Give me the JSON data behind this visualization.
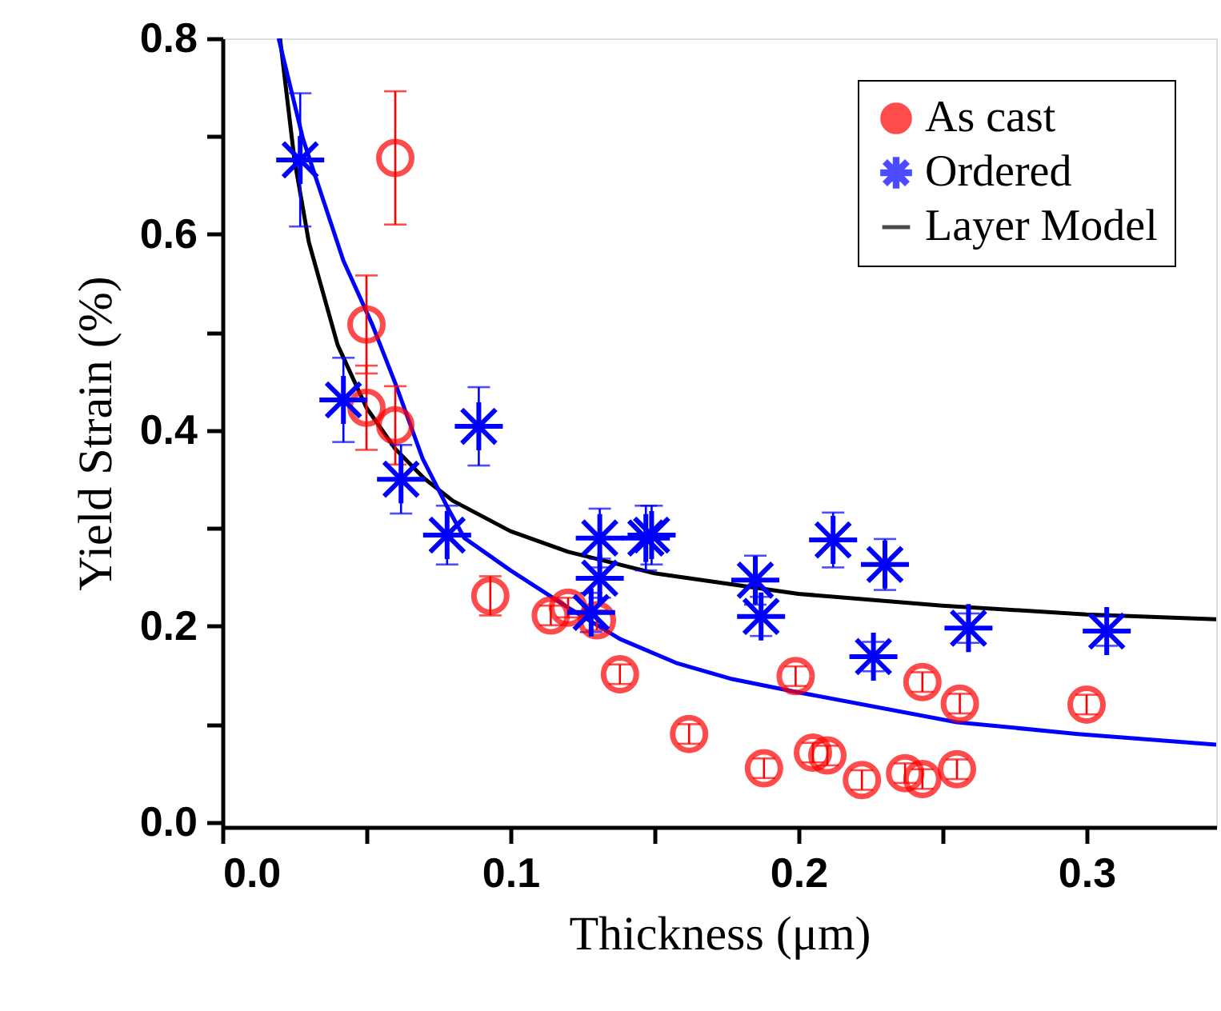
{
  "chart_data": {
    "type": "scatter",
    "xlabel": "Thickness (μm)",
    "ylabel": "Yield Strain (%)",
    "xlim": [
      0,
      0.345
    ],
    "ylim": [
      -0.005,
      0.8
    ],
    "xticks": [
      {
        "value": 0,
        "label": "0.0"
      },
      {
        "value": 0.05,
        "label": null
      },
      {
        "value": 0.1,
        "label": "0.1"
      },
      {
        "value": 0.15,
        "label": null
      },
      {
        "value": 0.2,
        "label": "0.2"
      },
      {
        "value": 0.25,
        "label": null
      },
      {
        "value": 0.3,
        "label": "0.3"
      }
    ],
    "yticks": [
      {
        "value": 0,
        "label": "0.0"
      },
      {
        "value": 0.1,
        "label": null
      },
      {
        "value": 0.2,
        "label": "0.2"
      },
      {
        "value": 0.3,
        "label": null
      },
      {
        "value": 0.4,
        "label": "0.4"
      },
      {
        "value": 0.5,
        "label": null
      },
      {
        "value": 0.6,
        "label": "0.6"
      },
      {
        "value": 0.7,
        "label": null
      },
      {
        "value": 0.8,
        "label": "0.8"
      }
    ],
    "legend": "top right",
    "grid": false,
    "series": [
      {
        "name": "As cast",
        "color": "#ff0000",
        "marker": "circle",
        "x": [
          0.06,
          0.05,
          0.05,
          0.06,
          0.093,
          0.114,
          0.12,
          0.13,
          0.138,
          0.162,
          0.188,
          0.199,
          0.205,
          0.21,
          0.222,
          0.237,
          0.243,
          0.243,
          0.255,
          0.256,
          0.3
        ],
        "values": [
          0.678,
          0.508,
          0.423,
          0.405,
          0.231,
          0.211,
          0.219,
          0.206,
          0.151,
          0.09,
          0.055,
          0.149,
          0.071,
          0.068,
          0.043,
          0.05,
          0.044,
          0.143,
          0.054,
          0.121,
          0.12
        ],
        "errors": [
          0.068,
          0.05,
          0.043,
          0.04,
          0.02,
          0.01,
          0.01,
          0.01,
          0.01,
          0.01,
          0.01,
          0.01,
          0.01,
          0.01,
          0.01,
          0.01,
          0.01,
          0.01,
          0.01,
          0.01,
          0.01
        ]
      },
      {
        "name": "Ordered",
        "color": "#0000ff",
        "marker": "cross",
        "x": [
          0.027,
          0.042,
          0.062,
          0.089,
          0.078,
          0.131,
          0.131,
          0.128,
          0.147,
          0.149,
          0.185,
          0.187,
          0.212,
          0.23,
          0.226,
          0.259,
          0.307
        ],
        "values": [
          0.676,
          0.431,
          0.35,
          0.404,
          0.293,
          0.29,
          0.249,
          0.214,
          0.29,
          0.293,
          0.247,
          0.21,
          0.288,
          0.263,
          0.169,
          0.198,
          0.195
        ],
        "errors": [
          0.068,
          0.043,
          0.035,
          0.04,
          0.03,
          0.03,
          0.02,
          0.02,
          0.033,
          0.03,
          0.025,
          0.02,
          0.028,
          0.026,
          0.015,
          0.015,
          0.015
        ]
      },
      {
        "name": "Layer Model",
        "color": "#000000",
        "type": "line",
        "marker": "none",
        "line_style": "solid",
        "x": [
          0.02,
          0.025,
          0.03,
          0.04,
          0.05,
          0.06,
          0.07,
          0.08,
          0.1,
          0.12,
          0.15,
          0.2,
          0.25,
          0.3,
          0.345
        ],
        "values": [
          0.8,
          0.676,
          0.592,
          0.487,
          0.423,
          0.381,
          0.351,
          0.328,
          0.297,
          0.276,
          0.254,
          0.233,
          0.221,
          0.212,
          0.207
        ]
      },
      {
        "color": "#0000ff",
        "type": "line",
        "marker": "none",
        "line_style": "solid",
        "x": [
          0.0195,
          0.028,
          0.042,
          0.052,
          0.06,
          0.0695,
          0.078,
          0.084,
          0.1,
          0.12,
          0.138,
          0.158,
          0.177,
          0.199,
          0.255,
          0.297,
          0.345
        ],
        "values": [
          0.8,
          0.697,
          0.573,
          0.508,
          0.448,
          0.371,
          0.322,
          0.29,
          0.257,
          0.219,
          0.187,
          0.162,
          0.146,
          0.133,
          0.102,
          0.09,
          0.079
        ]
      }
    ]
  }
}
